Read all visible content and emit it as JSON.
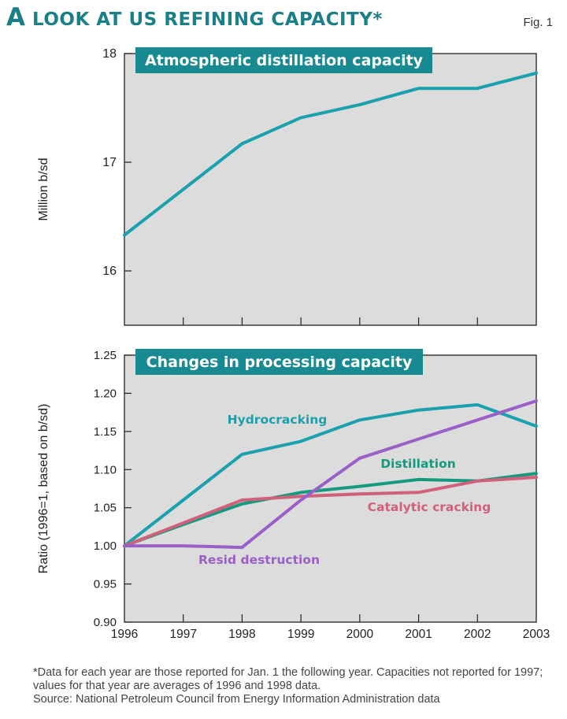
{
  "figure": {
    "title_first_letter": "A",
    "title_rest": " LOOK AT US REFINING CAPACITY*",
    "fig_label": "Fig. 1",
    "footnote": "*Data for each year are those reported for Jan. 1 the following year. Capacities not reported for 1997; values for that year are averages of 1996 and 1998 data.",
    "source": "Source: National Petroleum Council from Energy Information Administration data"
  },
  "colors": {
    "teal": "#1a8a92",
    "hydrocracking": "#1ba0ad",
    "distillation": "#159a80",
    "catalytic": "#d1607a",
    "resid": "#9b5fc8",
    "panel": "#dcdcdc"
  },
  "chart_data": [
    {
      "type": "line",
      "title": "Atmospheric distillation capacity",
      "ylabel": "Million b/sd",
      "xlabel": "",
      "ylim": [
        15.5,
        18
      ],
      "yticks": [
        16,
        17,
        18
      ],
      "x": [
        1996,
        1997,
        1998,
        1999,
        2000,
        2001,
        2002,
        2003
      ],
      "series": [
        {
          "name": "Atmospheric distillation capacity",
          "values": [
            16.33,
            16.75,
            17.17,
            17.41,
            17.53,
            17.68,
            17.68,
            17.82
          ]
        }
      ]
    },
    {
      "type": "line",
      "title": "Changes in processing capacity",
      "ylabel": "Ratio (1996=1, based on b/sd)",
      "xlabel": "",
      "ylim": [
        0.9,
        1.25
      ],
      "yticks": [
        "0.90",
        "0.95",
        "1.00",
        "1.05",
        "1.10",
        "1.15",
        "1.20",
        "1.25"
      ],
      "x": [
        1996,
        1997,
        1998,
        1999,
        2000,
        2001,
        2002,
        2003
      ],
      "x_tick_labels": [
        "1996",
        "1997",
        "1998",
        "1999",
        "2000",
        "2001",
        "2002",
        "2003"
      ],
      "series": [
        {
          "name": "Hydrocracking",
          "values": [
            1.0,
            1.06,
            1.12,
            1.137,
            1.165,
            1.178,
            1.185,
            1.157
          ]
        },
        {
          "name": "Distillation",
          "values": [
            1.0,
            1.028,
            1.055,
            1.07,
            1.078,
            1.087,
            1.085,
            1.095
          ]
        },
        {
          "name": "Catalytic cracking",
          "values": [
            1.0,
            1.03,
            1.06,
            1.065,
            1.068,
            1.07,
            1.085,
            1.09
          ]
        },
        {
          "name": "Resid destruction",
          "values": [
            1.0,
            1.0,
            0.998,
            1.06,
            1.115,
            1.14,
            1.165,
            1.19
          ]
        }
      ]
    }
  ]
}
